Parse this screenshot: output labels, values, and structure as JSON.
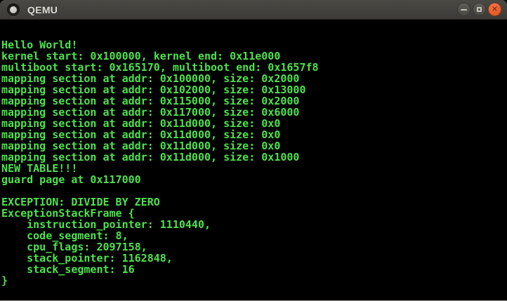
{
  "window": {
    "title": "QEMU",
    "titlebar_color": "#3c3b37",
    "controls": {
      "minimize_icon": "minus",
      "maximize_icon": "square-outline",
      "close_icon": "✕",
      "close_color": "#e95420"
    },
    "menu_icon": "circle-dot"
  },
  "terminal": {
    "background": "#000000",
    "text_color": "#4ee24e",
    "columns": 80,
    "rows": 25,
    "lines": [
      "Hello World!",
      "kernel start: 0x100000, kernel end: 0x11e000",
      "multiboot start: 0x165170, multiboot end: 0x1657f8",
      "mapping section at addr: 0x100000, size: 0x2000",
      "mapping section at addr: 0x102000, size: 0x13000",
      "mapping section at addr: 0x115000, size: 0x2000",
      "mapping section at addr: 0x117000, size: 0x6000",
      "mapping section at addr: 0x11d000, size: 0x0",
      "mapping section at addr: 0x11d000, size: 0x0",
      "mapping section at addr: 0x11d000, size: 0x0",
      "mapping section at addr: 0x11d000, size: 0x1000",
      "NEW TABLE!!!",
      "guard page at 0x117000",
      "",
      "EXCEPTION: DIVIDE BY ZERO",
      "ExceptionStackFrame {",
      "    instruction_pointer: 1110440,",
      "    code_segment: 8,",
      "    cpu_flags: 2097158,",
      "    stack_pointer: 1162848,",
      "    stack_segment: 16",
      "}"
    ]
  }
}
